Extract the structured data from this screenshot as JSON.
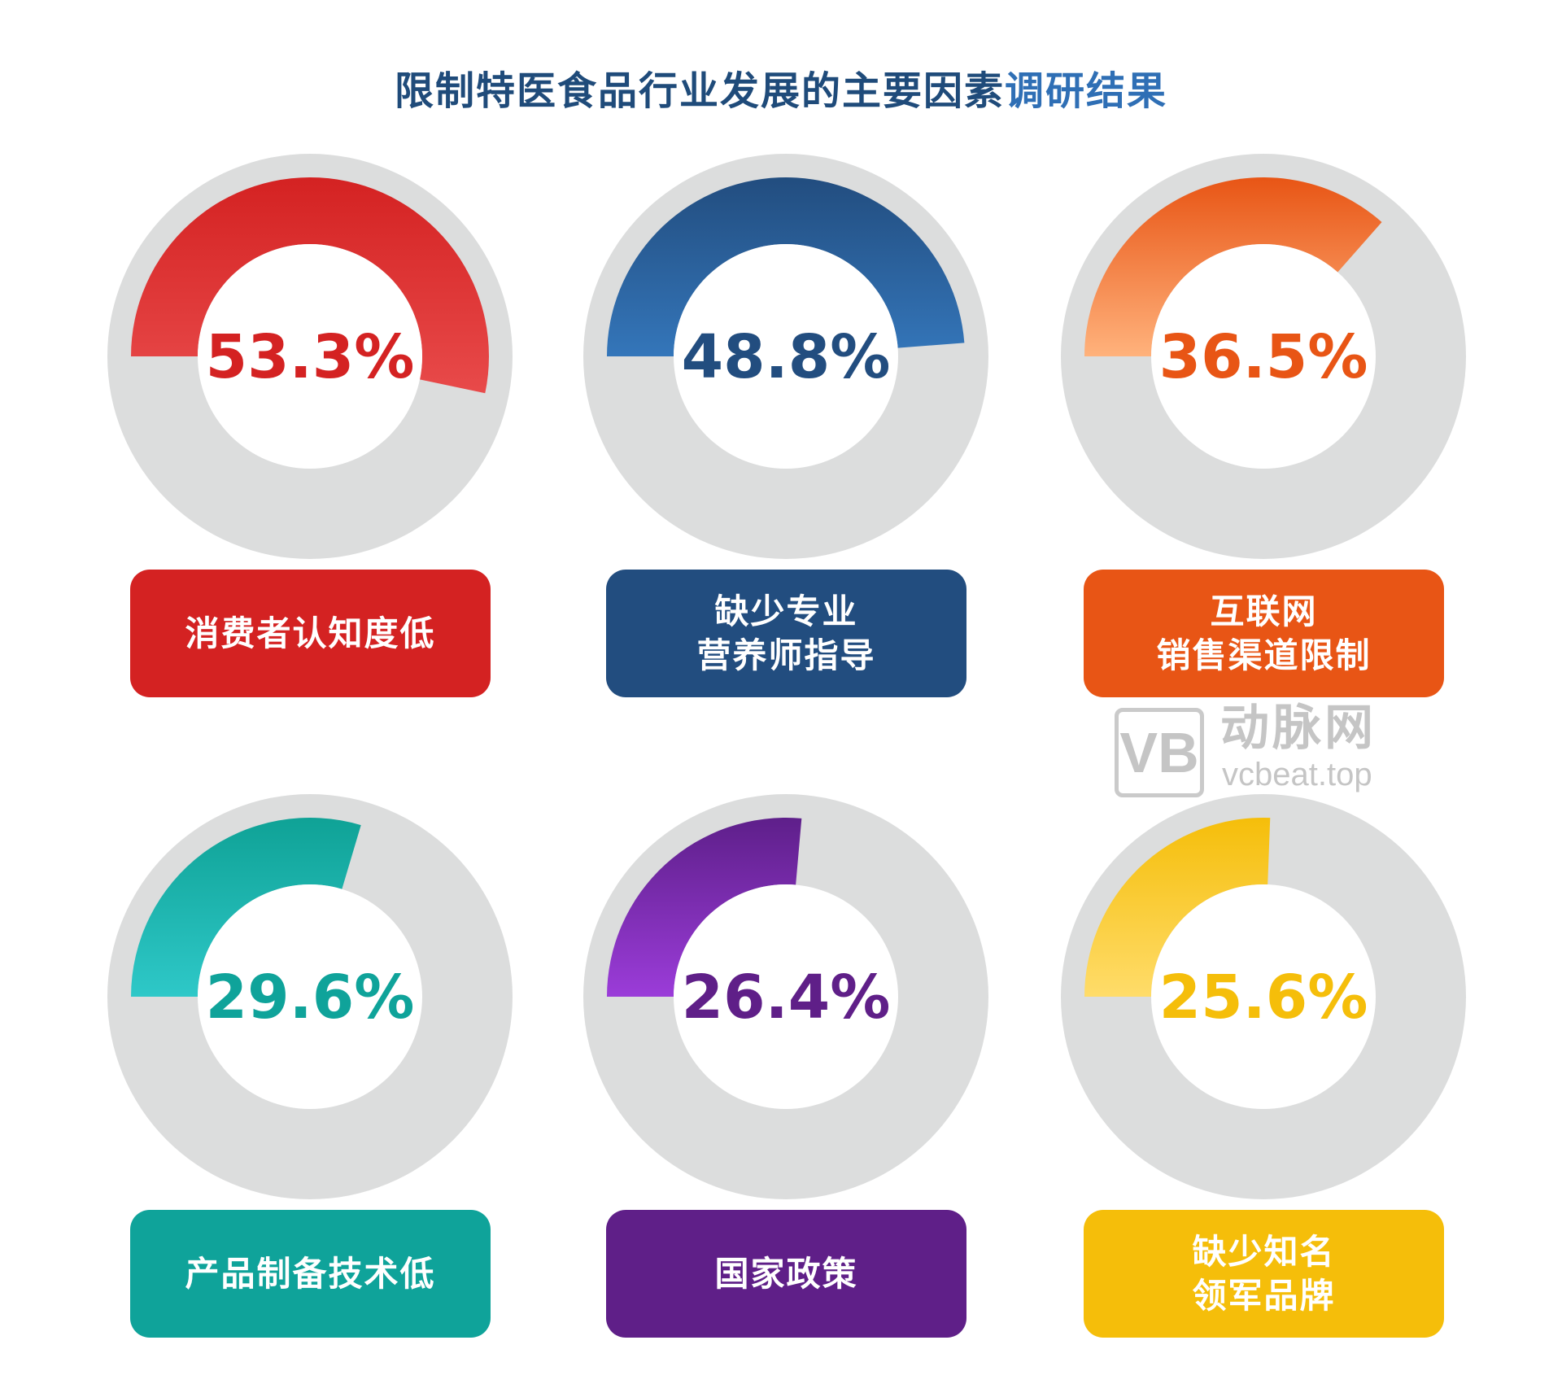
{
  "chart_data": {
    "type": "donut",
    "title_main": "限制特医食品行业发展的主要因素",
    "title_accent": "调研结果",
    "track_color": "#dcdddd",
    "items": [
      {
        "label_lines": [
          "消费者认知度低"
        ],
        "value": 53.3,
        "value_label": "53.3%",
        "color": "#d42222",
        "grad": [
          "#d42222",
          "#e84a4a"
        ]
      },
      {
        "label_lines": [
          "缺少专业",
          "营养师指导"
        ],
        "value": 48.8,
        "value_label": "48.8%",
        "color": "#224d7f",
        "grad": [
          "#224d7f",
          "#3476ba"
        ]
      },
      {
        "label_lines": [
          "互联网",
          "销售渠道限制"
        ],
        "value": 36.5,
        "value_label": "36.5%",
        "color": "#e85515",
        "grad": [
          "#e85515",
          "#ffb27c"
        ]
      },
      {
        "label_lines": [
          "产品制备技术低"
        ],
        "value": 29.6,
        "value_label": "29.6%",
        "color": "#0fa39a",
        "grad": [
          "#0fa296",
          "#2ec8c8"
        ]
      },
      {
        "label_lines": [
          "国家政策"
        ],
        "value": 26.4,
        "value_label": "26.4%",
        "color": "#5f1f88",
        "grad": [
          "#5e1f8a",
          "#9b3cd9"
        ]
      },
      {
        "label_lines": [
          "缺少知名",
          "领军品牌"
        ],
        "value": 25.6,
        "value_label": "25.6%",
        "color": "#f5be0a",
        "grad": [
          "#f5be0a",
          "#ffdc6a"
        ]
      }
    ]
  },
  "watermark": {
    "brand": "动脉网",
    "domain": "vcbeat.top",
    "logo": "VB"
  }
}
